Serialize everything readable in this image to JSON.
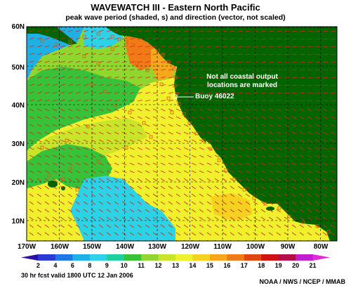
{
  "header": {
    "title": "WAVEWATCH III - Eastern North Pacific",
    "subtitle": "peak wave period (shaded, s) and direction (vector, not scaled)"
  },
  "map": {
    "lat_labels": [
      "60N",
      "50N",
      "40N",
      "30N",
      "20N",
      "10N"
    ],
    "lon_labels": [
      "170W",
      "160W",
      "150W",
      "140W",
      "130W",
      "120W",
      "110W",
      "100W",
      "90W",
      "80W"
    ],
    "land_color": "#006400",
    "grid": "dashed black lat/lon lines every 10 degrees",
    "annotations": {
      "coastal_note": "Not all coastal output\nlocations are marked",
      "buoy_label": "Buoy 46022"
    }
  },
  "legend": {
    "values": [
      "2",
      "4",
      "6",
      "8",
      "9",
      "10",
      "11",
      "12",
      "13",
      "14",
      "15",
      "16",
      "17",
      "18",
      "19",
      "20",
      "21"
    ],
    "colors": [
      "#2b0fa6",
      "#2a3ad8",
      "#1f78e6",
      "#1fb0e6",
      "#2dd2e6",
      "#1ecfa0",
      "#38c23a",
      "#8fd62f",
      "#c9e52a",
      "#f0f02c",
      "#f7d11f",
      "#f5a81a",
      "#f07a16",
      "#e14512",
      "#d11212",
      "#b40c4a",
      "#c21ecf",
      "#e02bd6"
    ]
  },
  "footer": {
    "forecast": "30 hr fcst valid 1800 UTC  12 Jan 2006",
    "credit": "NOAA / NWS / NCEP / MMAB"
  }
}
